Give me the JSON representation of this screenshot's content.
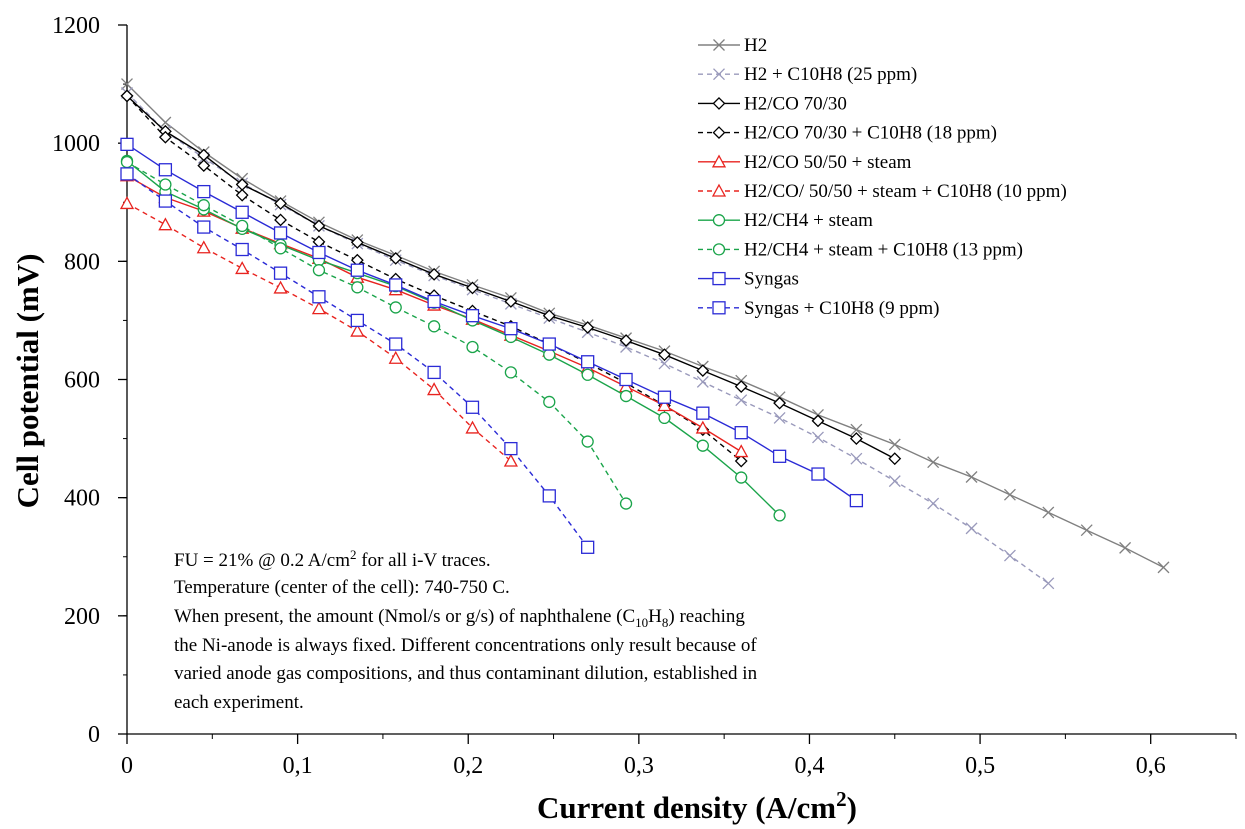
{
  "chart_data": {
    "type": "line",
    "title": "",
    "xlabel": "Current density (A/cm",
    "xlabel_sup": "2",
    "xlabel_tail": ")",
    "ylabel": "Cell potential (mV)",
    "xlim": [
      0,
      0.65
    ],
    "ylim": [
      0,
      1200
    ],
    "x_ticks": [
      "0",
      "0,1",
      "0,2",
      "0,3",
      "0,4",
      "0,5",
      "0,6"
    ],
    "x_tick_values": [
      0,
      0.1,
      0.2,
      0.3,
      0.4,
      0.5,
      0.6
    ],
    "y_ticks": [
      "0",
      "200",
      "400",
      "600",
      "800",
      "1000",
      "1200"
    ],
    "y_tick_values": [
      0,
      200,
      400,
      600,
      800,
      1000,
      1200
    ],
    "grid": false,
    "legend_position": "top-right",
    "series": [
      {
        "name": "H2",
        "color": "#808080",
        "dash": "solid",
        "marker": "x",
        "x": [
          0,
          0.0225,
          0.045,
          0.0675,
          0.09,
          0.1125,
          0.135,
          0.1575,
          0.18,
          0.2025,
          0.225,
          0.2475,
          0.27,
          0.2925,
          0.315,
          0.3375,
          0.36,
          0.3825,
          0.405,
          0.4275,
          0.45,
          0.4725,
          0.495,
          0.5175,
          0.54,
          0.5625,
          0.585,
          0.6075
        ],
        "y": [
          1100,
          1035,
          985,
          940,
          902,
          866,
          836,
          810,
          783,
          760,
          738,
          712,
          692,
          670,
          648,
          622,
          598,
          570,
          540,
          515,
          490,
          460,
          435,
          405,
          375,
          345,
          315,
          282
        ]
      },
      {
        "name": "H2 + C10H8 (25 ppm)",
        "color": "#9999bb",
        "dash": "dashed",
        "marker": "x",
        "x": [
          0,
          0.0225,
          0.045,
          0.0675,
          0.09,
          0.1125,
          0.135,
          0.1575,
          0.18,
          0.2025,
          0.225,
          0.2475,
          0.27,
          0.2925,
          0.315,
          0.3375,
          0.36,
          0.3825,
          0.405,
          0.4275,
          0.45,
          0.4725,
          0.495,
          0.5175,
          0.54
        ],
        "y": [
          1085,
          1020,
          975,
          932,
          896,
          860,
          830,
          802,
          776,
          752,
          728,
          704,
          680,
          655,
          627,
          596,
          565,
          535,
          502,
          466,
          428,
          390,
          348,
          302,
          255
        ]
      },
      {
        "name": "H2/CO 70/30",
        "color": "#000000",
        "dash": "solid",
        "marker": "diamond",
        "x": [
          0,
          0.0225,
          0.045,
          0.0675,
          0.09,
          0.1125,
          0.135,
          0.1575,
          0.18,
          0.2025,
          0.225,
          0.2475,
          0.27,
          0.2925,
          0.315,
          0.3375,
          0.36,
          0.3825,
          0.405,
          0.4275,
          0.45
        ],
        "y": [
          1080,
          1020,
          980,
          930,
          898,
          860,
          832,
          805,
          778,
          755,
          732,
          708,
          688,
          666,
          642,
          615,
          588,
          560,
          530,
          500,
          466
        ]
      },
      {
        "name": "H2/CO 70/30 + C10H8 (18 ppm)",
        "color": "#000000",
        "dash": "dashed",
        "marker": "diamond",
        "x": [
          0,
          0.0225,
          0.045,
          0.0675,
          0.09,
          0.1125,
          0.135,
          0.1575,
          0.18,
          0.2025,
          0.225,
          0.2475,
          0.27,
          0.2925,
          0.315,
          0.3375,
          0.36
        ],
        "y": [
          1080,
          1010,
          962,
          912,
          870,
          833,
          802,
          770,
          742,
          716,
          690,
          660,
          628,
          594,
          556,
          515,
          462
        ]
      },
      {
        "name": "H2/CO 50/50 + steam",
        "color": "#e8231f",
        "dash": "solid",
        "marker": "triangle",
        "x": [
          0,
          0.0225,
          0.045,
          0.0675,
          0.09,
          0.1125,
          0.135,
          0.1575,
          0.18,
          0.2025,
          0.225,
          0.2475,
          0.27,
          0.2925,
          0.315,
          0.3375,
          0.36
        ],
        "y": [
          945,
          908,
          885,
          856,
          830,
          805,
          773,
          752,
          726,
          702,
          675,
          648,
          620,
          588,
          556,
          518,
          478
        ]
      },
      {
        "name": "H2/CO/ 50/50 + steam + C10H8 (10 ppm)",
        "color": "#e8231f",
        "dash": "dashed",
        "marker": "triangle",
        "x": [
          0,
          0.0225,
          0.045,
          0.0675,
          0.09,
          0.1125,
          0.135,
          0.1575,
          0.18,
          0.2025,
          0.225
        ],
        "y": [
          898,
          862,
          823,
          788,
          755,
          720,
          682,
          636,
          583,
          518,
          462
        ]
      },
      {
        "name": "H2/CH4 + steam",
        "color": "#1aa44a",
        "dash": "solid",
        "marker": "circle",
        "x": [
          0,
          0.0225,
          0.045,
          0.0675,
          0.09,
          0.1125,
          0.135,
          0.1575,
          0.18,
          0.2025,
          0.225,
          0.2475,
          0.27,
          0.2925,
          0.315,
          0.3375,
          0.36,
          0.3825
        ],
        "y": [
          970,
          918,
          888,
          855,
          828,
          802,
          780,
          758,
          730,
          700,
          672,
          642,
          608,
          572,
          535,
          488,
          434,
          370
        ]
      },
      {
        "name": "H2/CH4 + steam + C10H8 (13 ppm)",
        "color": "#1aa44a",
        "dash": "dashed",
        "marker": "circle",
        "x": [
          0,
          0.0225,
          0.045,
          0.0675,
          0.09,
          0.1125,
          0.135,
          0.1575,
          0.18,
          0.2025,
          0.225,
          0.2475,
          0.27,
          0.2925
        ],
        "y": [
          968,
          930,
          895,
          860,
          822,
          785,
          756,
          722,
          690,
          655,
          612,
          562,
          495,
          390
        ]
      },
      {
        "name": "Syngas",
        "color": "#2b2bd6",
        "dash": "solid",
        "marker": "square",
        "x": [
          0,
          0.0225,
          0.045,
          0.0675,
          0.09,
          0.1125,
          0.135,
          0.1575,
          0.18,
          0.2025,
          0.225,
          0.2475,
          0.27,
          0.2925,
          0.315,
          0.3375,
          0.36,
          0.3825,
          0.405,
          0.4275
        ],
        "y": [
          998,
          955,
          918,
          883,
          848,
          815,
          785,
          760,
          732,
          708,
          686,
          660,
          630,
          600,
          570,
          543,
          510,
          470,
          440,
          395
        ]
      },
      {
        "name": "Syngas + C10H8 (9 ppm)",
        "color": "#2b2bd6",
        "dash": "dashed",
        "marker": "square",
        "x": [
          0,
          0.0225,
          0.045,
          0.0675,
          0.09,
          0.1125,
          0.135,
          0.1575,
          0.18,
          0.2025,
          0.225,
          0.2475,
          0.27
        ],
        "y": [
          948,
          902,
          858,
          820,
          780,
          740,
          700,
          660,
          612,
          553,
          483,
          403,
          316
        ]
      }
    ],
    "annotation": {
      "line1_pre": "FU = 21% @ 0.2 A/cm",
      "line1_sup": "2",
      "line1_post": " for all i-V traces.",
      "line2": "Temperature (center of the cell): 740-750   C.",
      "line3_pre": "When present, the amount (Nmol/s or g/s) of naphthalene (C",
      "line3_sub1": "10",
      "line3_mid": "H",
      "line3_sub2": "8",
      "line3_post": ") reaching",
      "line4": "the Ni-anode is always fixed. Different concentrations only result because of",
      "line5": "varied anode gas compositions, and thus contaminant dilution, established in",
      "line6": "each experiment."
    }
  }
}
